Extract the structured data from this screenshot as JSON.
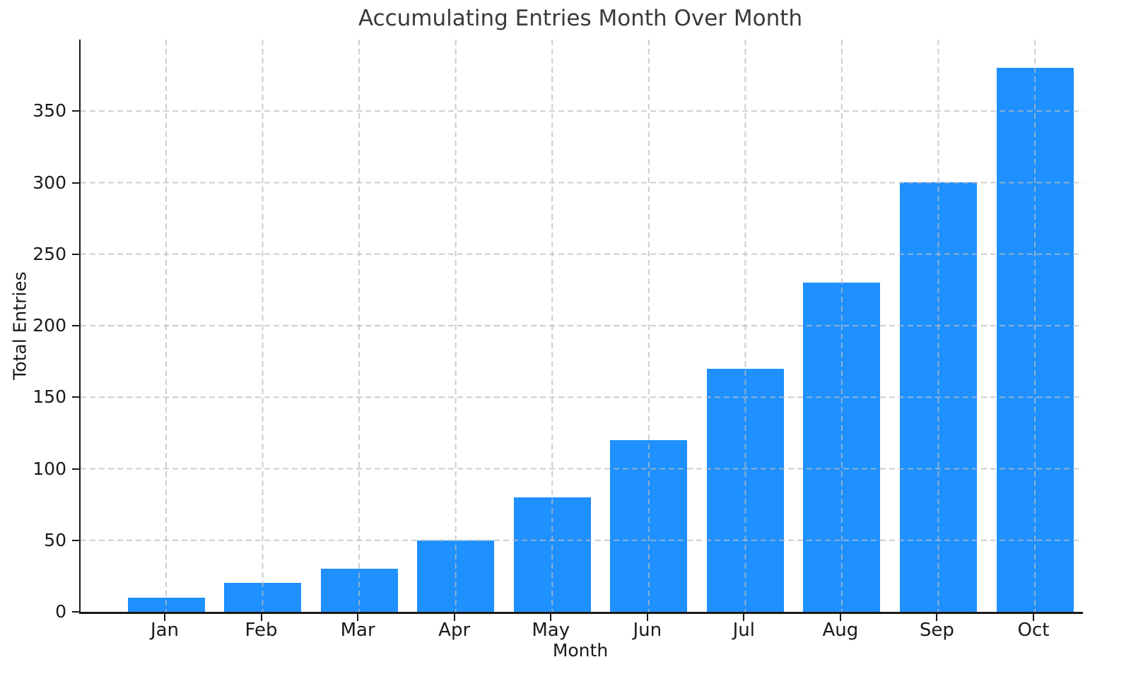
{
  "chart_data": {
    "type": "bar",
    "title": "Accumulating Entries Month Over Month",
    "xlabel": "Month",
    "ylabel": "Total Entries",
    "categories": [
      "Jan",
      "Feb",
      "Mar",
      "Apr",
      "May",
      "Jun",
      "Jul",
      "Aug",
      "Sep",
      "Oct"
    ],
    "values": [
      10,
      20,
      30,
      50,
      80,
      120,
      170,
      230,
      300,
      380
    ],
    "yticks": [
      0,
      50,
      100,
      150,
      200,
      250,
      300,
      350
    ],
    "ylim": [
      0,
      400
    ],
    "bar_color": "#1e90ff",
    "axis_color": "#1a1a1a",
    "title_color": "#3a3a3a",
    "grid": {
      "show": "true",
      "line_style": "dashed",
      "color": "#bbbbbb",
      "drawn_over_bars": "true"
    },
    "legend_position": "none"
  }
}
